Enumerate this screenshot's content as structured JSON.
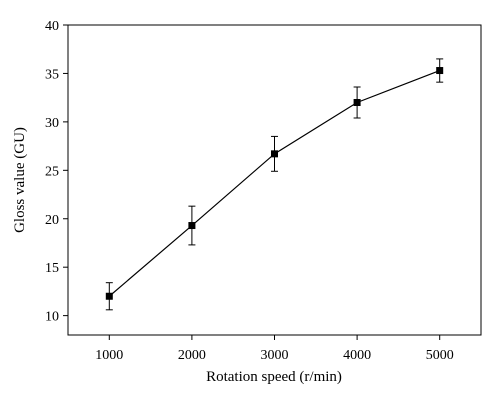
{
  "chart_data": {
    "type": "line",
    "title": "",
    "xlabel": "Rotation speed (r/min)",
    "ylabel": "Gloss value (GU)",
    "x": [
      1000,
      2000,
      3000,
      4000,
      5000
    ],
    "series": [
      {
        "values": [
          12.0,
          19.3,
          26.7,
          32.0,
          35.3
        ],
        "error": [
          1.4,
          2.0,
          1.8,
          1.6,
          1.2
        ],
        "marker": "square",
        "color": "#000000"
      }
    ],
    "xticks": [
      1000,
      2000,
      3000,
      4000,
      5000
    ],
    "xtick_labels": [
      "1000",
      "2000",
      "3000",
      "4000",
      "5000"
    ],
    "yticks": [
      10,
      15,
      20,
      25,
      30,
      35,
      40
    ],
    "ytick_labels": [
      "10",
      "15",
      "20",
      "25",
      "30",
      "35",
      "40"
    ],
    "xlim": [
      500,
      5500
    ],
    "ylim": [
      8,
      40
    ],
    "grid": false,
    "legend": "none"
  }
}
